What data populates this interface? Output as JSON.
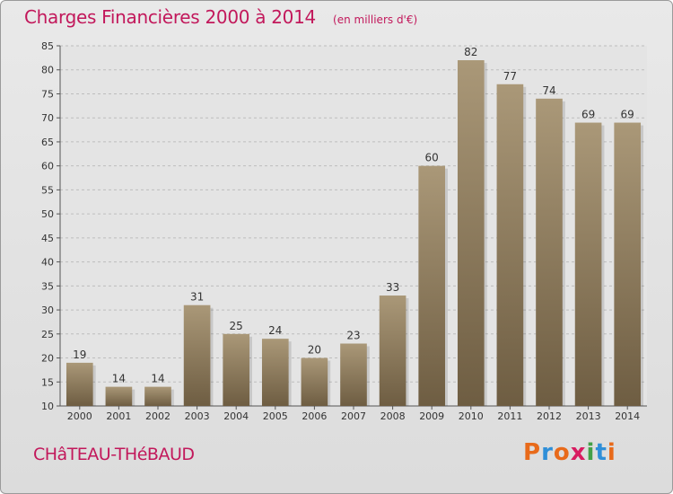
{
  "chart_data": {
    "type": "bar",
    "title": "Charges Financières 2000 à 2014",
    "subtitle": "(en milliers d'€)",
    "categories": [
      "2000",
      "2001",
      "2002",
      "2003",
      "2004",
      "2005",
      "2006",
      "2007",
      "2008",
      "2009",
      "2010",
      "2011",
      "2012",
      "2013",
      "2014"
    ],
    "values": [
      19,
      14,
      14,
      31,
      25,
      24,
      20,
      23,
      33,
      60,
      82,
      77,
      74,
      69,
      69
    ],
    "ylim": [
      10,
      85
    ],
    "yticks": [
      10,
      15,
      20,
      25,
      30,
      35,
      40,
      45,
      50,
      55,
      60,
      65,
      70,
      75,
      80,
      85
    ],
    "grid": true,
    "legend": "none"
  },
  "footer": {
    "commune": "CHâTEAU-THéBAUD",
    "brand": {
      "letters": [
        "P",
        "r",
        "o",
        "x",
        "i",
        "t",
        "i"
      ],
      "colors": [
        "#e86a1a",
        "#2f8fd8",
        "#e86a1a",
        "#d81b60",
        "#43a047",
        "#2f8fd8",
        "#e86a1a"
      ]
    }
  },
  "colors": {
    "accent": "#c2185b",
    "bar_top": "#aa9878",
    "bar_bottom": "#6e5d42"
  }
}
